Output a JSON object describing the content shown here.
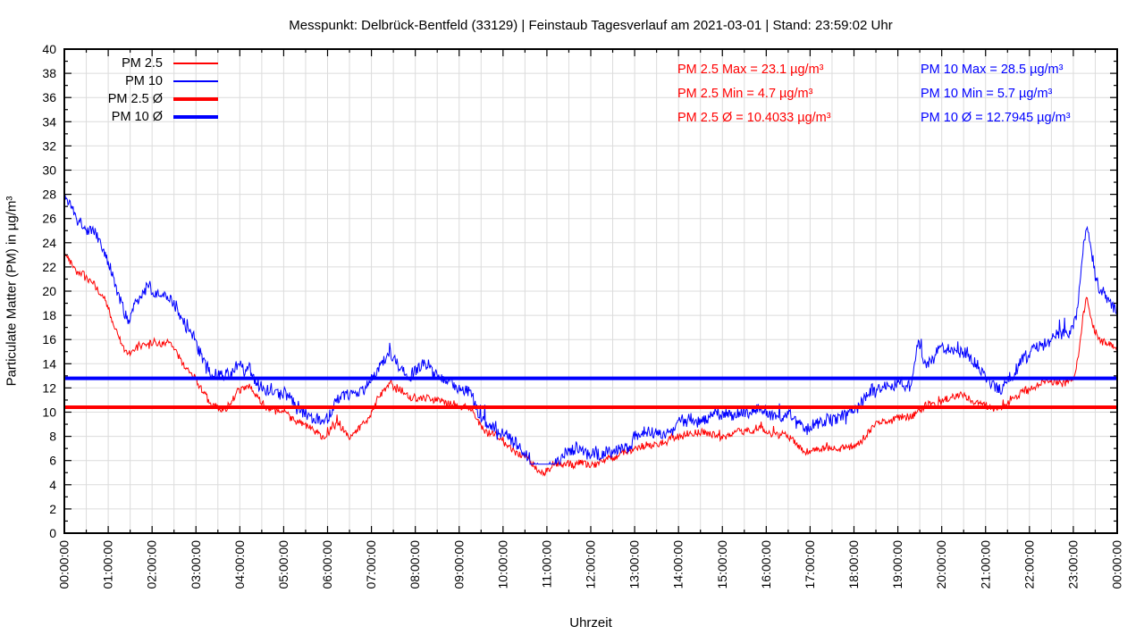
{
  "title": "Messpunkt: Delbrück-Bentfeld (33129) | Feinstaub Tagesverlauf am 2021-03-01 | Stand: 23:59:02 Uhr",
  "axes": {
    "x_label": "Uhrzeit",
    "y_label": "Particulate Matter (PM) in µg/m³"
  },
  "legend": {
    "items": [
      {
        "label": "PM 2.5",
        "color": "#ff0000",
        "style": "thin"
      },
      {
        "label": "PM 10",
        "color": "#0000ff",
        "style": "thin"
      },
      {
        "label": "PM 2.5 Ø",
        "color": "#ff0000",
        "style": "thick"
      },
      {
        "label": "PM 10 Ø",
        "color": "#0000ff",
        "style": "thick"
      }
    ]
  },
  "stats": {
    "pm25": {
      "color": "#ff0000",
      "max": "PM 2.5 Max = 23.1 µg/m³",
      "min": "PM 2.5 Min = 4.7 µg/m³",
      "avg": "PM 2.5 Ø = 10.4033 µg/m³"
    },
    "pm10": {
      "color": "#0000ff",
      "max": "PM 10 Max = 28.5 µg/m³",
      "min": "PM 10 Min = 5.7 µg/m³",
      "avg": "PM 10 Ø = 12.7945 µg/m³"
    }
  },
  "chart_data": {
    "type": "line",
    "title": "Messpunkt: Delbrück-Bentfeld (33129) | Feinstaub Tagesverlauf am 2021-03-01 | Stand: 23:59:02 Uhr",
    "xlabel": "Uhrzeit",
    "ylabel": "Particulate Matter (PM) in µg/m³",
    "x_unit": "hours",
    "xlim": [
      0,
      24
    ],
    "ylim": [
      0,
      40
    ],
    "x_major_tick": 1,
    "x_minor_tick": 0.5,
    "y_major_tick": 2,
    "y_minor_tick": 1,
    "grid": true,
    "grid_color": "#dcdcdc",
    "legend_position": "top-left",
    "x_tick_labels": [
      "00:00:00",
      "01:00:00",
      "02:00:00",
      "03:00:00",
      "04:00:00",
      "05:00:00",
      "06:00:00",
      "07:00:00",
      "08:00:00",
      "09:00:00",
      "10:00:00",
      "11:00:00",
      "12:00:00",
      "13:00:00",
      "14:00:00",
      "15:00:00",
      "16:00:00",
      "17:00:00",
      "18:00:00",
      "19:00:00",
      "20:00:00",
      "21:00:00",
      "22:00:00",
      "23:00:00",
      "00:00:00"
    ],
    "series": [
      {
        "name": "PM 2.5",
        "color": "#ff0000",
        "width": 1,
        "max": 23.1,
        "min": 4.7,
        "avg": 10.4033,
        "noise_amp": 0.28,
        "seed": 42,
        "points_h_v": [
          [
            0,
            23.0
          ],
          [
            0.1,
            22.6
          ],
          [
            0.25,
            21.8
          ],
          [
            0.4,
            21.4
          ],
          [
            0.5,
            21.2
          ],
          [
            0.65,
            20.6
          ],
          [
            0.8,
            19.8
          ],
          [
            1.0,
            18.8
          ],
          [
            1.15,
            17.2
          ],
          [
            1.3,
            15.9
          ],
          [
            1.45,
            14.9
          ],
          [
            1.6,
            15.3
          ],
          [
            1.75,
            15.7
          ],
          [
            1.9,
            15.9
          ],
          [
            2.05,
            16.1
          ],
          [
            2.2,
            15.8
          ],
          [
            2.35,
            15.9
          ],
          [
            2.5,
            15.5
          ],
          [
            2.65,
            14.8
          ],
          [
            2.8,
            14.0
          ],
          [
            3.0,
            12.8
          ],
          [
            3.2,
            11.6
          ],
          [
            3.35,
            10.8
          ],
          [
            3.5,
            10.4
          ],
          [
            3.65,
            10.1
          ],
          [
            3.8,
            10.4
          ],
          [
            3.95,
            11.2
          ],
          [
            4.1,
            11.5
          ],
          [
            4.2,
            11.7
          ],
          [
            4.35,
            11.0
          ],
          [
            4.5,
            10.5
          ],
          [
            4.65,
            10.1
          ],
          [
            4.8,
            9.9
          ],
          [
            5.0,
            9.7
          ],
          [
            5.2,
            9.4
          ],
          [
            5.4,
            8.9
          ],
          [
            5.6,
            8.5
          ],
          [
            5.8,
            8.2
          ],
          [
            5.95,
            8.1
          ],
          [
            6.1,
            8.7
          ],
          [
            6.25,
            9.0
          ],
          [
            6.4,
            8.4
          ],
          [
            6.5,
            7.9
          ],
          [
            6.65,
            8.2
          ],
          [
            6.8,
            8.7
          ],
          [
            7.0,
            9.8
          ],
          [
            7.15,
            10.9
          ],
          [
            7.3,
            11.6
          ],
          [
            7.45,
            12.0
          ],
          [
            7.6,
            11.6
          ],
          [
            7.75,
            11.1
          ],
          [
            7.9,
            10.7
          ],
          [
            8.1,
            10.6
          ],
          [
            8.3,
            10.7
          ],
          [
            8.5,
            10.6
          ],
          [
            8.7,
            10.4
          ],
          [
            8.9,
            10.2
          ],
          [
            9.1,
            10.0
          ],
          [
            9.3,
            9.7
          ],
          [
            9.45,
            8.6
          ],
          [
            9.6,
            7.9
          ],
          [
            9.8,
            7.7
          ],
          [
            10.0,
            7.4
          ],
          [
            10.2,
            7.0
          ],
          [
            10.4,
            6.5
          ],
          [
            10.6,
            5.9
          ],
          [
            10.75,
            5.3
          ],
          [
            10.9,
            4.9
          ],
          [
            11.05,
            5.0
          ],
          [
            11.2,
            5.4
          ],
          [
            11.4,
            5.6
          ],
          [
            11.6,
            5.6
          ],
          [
            11.8,
            5.7
          ],
          [
            12.0,
            5.7
          ],
          [
            12.2,
            5.9
          ],
          [
            12.4,
            6.0
          ],
          [
            12.6,
            6.2
          ],
          [
            12.8,
            6.3
          ],
          [
            13.0,
            6.5
          ],
          [
            13.2,
            6.7
          ],
          [
            13.4,
            7.0
          ],
          [
            13.6,
            7.2
          ],
          [
            13.8,
            7.6
          ],
          [
            14.0,
            7.9
          ],
          [
            14.2,
            8.2
          ],
          [
            14.4,
            8.3
          ],
          [
            14.6,
            8.3
          ],
          [
            14.8,
            8.4
          ],
          [
            15.0,
            8.3
          ],
          [
            15.2,
            8.4
          ],
          [
            15.4,
            8.5
          ],
          [
            15.6,
            8.6
          ],
          [
            15.8,
            8.7
          ],
          [
            16.0,
            8.5
          ],
          [
            16.2,
            8.4
          ],
          [
            16.4,
            8.3
          ],
          [
            16.6,
            8.0
          ],
          [
            16.8,
            7.4
          ],
          [
            17.0,
            7.0
          ],
          [
            17.2,
            7.3
          ],
          [
            17.4,
            7.2
          ],
          [
            17.6,
            7.2
          ],
          [
            17.8,
            7.3
          ],
          [
            18.0,
            7.4
          ],
          [
            18.2,
            8.0
          ],
          [
            18.4,
            8.7
          ],
          [
            18.6,
            9.1
          ],
          [
            18.8,
            9.5
          ],
          [
            19.0,
            9.7
          ],
          [
            19.2,
            9.9
          ],
          [
            19.4,
            10.3
          ],
          [
            19.6,
            10.8
          ],
          [
            19.8,
            11.1
          ],
          [
            20.0,
            11.2
          ],
          [
            20.2,
            11.4
          ],
          [
            20.4,
            11.4
          ],
          [
            20.6,
            11.2
          ],
          [
            20.8,
            11.0
          ],
          [
            21.0,
            10.7
          ],
          [
            21.2,
            10.4
          ],
          [
            21.4,
            10.7
          ],
          [
            21.6,
            11.1
          ],
          [
            21.8,
            11.8
          ],
          [
            22.0,
            12.2
          ],
          [
            22.2,
            12.4
          ],
          [
            22.4,
            12.5
          ],
          [
            22.6,
            12.6
          ],
          [
            22.8,
            12.7
          ],
          [
            23.0,
            13.0
          ],
          [
            23.1,
            14.5
          ],
          [
            23.2,
            17.5
          ],
          [
            23.3,
            19.6
          ],
          [
            23.4,
            18.0
          ],
          [
            23.5,
            16.9
          ],
          [
            23.65,
            16.2
          ],
          [
            23.8,
            15.9
          ],
          [
            24,
            15.5
          ]
        ]
      },
      {
        "name": "PM 10",
        "color": "#0000ff",
        "width": 1,
        "max": 28.5,
        "min": 5.7,
        "avg": 12.7945,
        "noise_amp": 0.5,
        "seed": 1337,
        "points_h_v": [
          [
            0,
            28.2
          ],
          [
            0.1,
            27.6
          ],
          [
            0.25,
            26.4
          ],
          [
            0.4,
            25.8
          ],
          [
            0.55,
            25.4
          ],
          [
            0.7,
            25.0
          ],
          [
            0.85,
            24.2
          ],
          [
            1.0,
            22.6
          ],
          [
            1.15,
            20.8
          ],
          [
            1.3,
            19.2
          ],
          [
            1.45,
            17.5
          ],
          [
            1.6,
            18.7
          ],
          [
            1.75,
            19.2
          ],
          [
            1.9,
            20.2
          ],
          [
            2.0,
            19.3
          ],
          [
            2.15,
            19.6
          ],
          [
            2.3,
            19.4
          ],
          [
            2.45,
            19.3
          ],
          [
            2.6,
            18.7
          ],
          [
            2.75,
            17.6
          ],
          [
            2.9,
            16.3
          ],
          [
            3.05,
            15.0
          ],
          [
            3.2,
            13.8
          ],
          [
            3.35,
            12.8
          ],
          [
            3.5,
            12.4
          ],
          [
            3.65,
            12.3
          ],
          [
            3.8,
            12.7
          ],
          [
            3.95,
            13.9
          ],
          [
            4.1,
            13.0
          ],
          [
            4.2,
            13.8
          ],
          [
            4.35,
            13.0
          ],
          [
            4.5,
            12.8
          ],
          [
            4.65,
            12.6
          ],
          [
            4.8,
            12.4
          ],
          [
            5.0,
            12.4
          ],
          [
            5.15,
            11.5
          ],
          [
            5.3,
            10.6
          ],
          [
            5.5,
            9.9
          ],
          [
            5.7,
            9.2
          ],
          [
            5.9,
            9.0
          ],
          [
            6.05,
            9.9
          ],
          [
            6.15,
            10.9
          ],
          [
            6.3,
            10.7
          ],
          [
            6.45,
            11.2
          ],
          [
            6.6,
            11.4
          ],
          [
            6.75,
            11.6
          ],
          [
            6.9,
            12.2
          ],
          [
            7.05,
            12.9
          ],
          [
            7.2,
            13.5
          ],
          [
            7.35,
            14.5
          ],
          [
            7.5,
            14.3
          ],
          [
            7.65,
            13.7
          ],
          [
            7.8,
            13.3
          ],
          [
            7.95,
            13.2
          ],
          [
            8.1,
            13.5
          ],
          [
            8.25,
            13.7
          ],
          [
            8.4,
            13.2
          ],
          [
            8.55,
            12.9
          ],
          [
            8.7,
            12.5
          ],
          [
            8.85,
            12.3
          ],
          [
            9.0,
            12.2
          ],
          [
            9.15,
            11.9
          ],
          [
            9.3,
            11.5
          ],
          [
            9.45,
            10.0
          ],
          [
            9.6,
            9.6
          ],
          [
            9.8,
            9.1
          ],
          [
            10.0,
            8.7
          ],
          [
            10.2,
            8.1
          ],
          [
            10.4,
            7.4
          ],
          [
            10.6,
            6.7
          ],
          [
            10.8,
            6.2
          ],
          [
            10.95,
            5.9
          ],
          [
            11.1,
            6.4
          ],
          [
            11.3,
            6.9
          ],
          [
            11.5,
            7.1
          ],
          [
            11.7,
            7.2
          ],
          [
            11.9,
            7.2
          ],
          [
            12.1,
            7.3
          ],
          [
            12.3,
            7.5
          ],
          [
            12.5,
            7.6
          ],
          [
            12.7,
            7.8
          ],
          [
            12.9,
            8.0
          ],
          [
            13.0,
            8.6
          ],
          [
            13.1,
            8.2
          ],
          [
            13.3,
            8.4
          ],
          [
            13.5,
            8.7
          ],
          [
            13.7,
            8.9
          ],
          [
            13.9,
            9.4
          ],
          [
            14.05,
            10.3
          ],
          [
            14.2,
            10.0
          ],
          [
            14.4,
            10.1
          ],
          [
            14.6,
            10.2
          ],
          [
            14.8,
            10.3
          ],
          [
            15.0,
            10.2
          ],
          [
            15.2,
            10.3
          ],
          [
            15.5,
            10.6
          ],
          [
            15.7,
            11.0
          ],
          [
            15.9,
            11.3
          ],
          [
            16.05,
            10.8
          ],
          [
            16.2,
            10.5
          ],
          [
            16.4,
            10.3
          ],
          [
            16.6,
            10.0
          ],
          [
            16.8,
            9.7
          ],
          [
            17.0,
            9.4
          ],
          [
            17.15,
            9.8
          ],
          [
            17.3,
            10.1
          ],
          [
            17.5,
            10.2
          ],
          [
            17.7,
            10.5
          ],
          [
            17.9,
            10.8
          ],
          [
            18.1,
            11.3
          ],
          [
            18.3,
            12.2
          ],
          [
            18.5,
            12.6
          ],
          [
            18.7,
            12.9
          ],
          [
            18.9,
            13.1
          ],
          [
            19.1,
            13.1
          ],
          [
            19.3,
            13.0
          ],
          [
            19.4,
            15.5
          ],
          [
            19.45,
            16.6
          ],
          [
            19.6,
            14.9
          ],
          [
            19.8,
            14.9
          ],
          [
            20.0,
            15.2
          ],
          [
            20.2,
            15.6
          ],
          [
            20.4,
            15.4
          ],
          [
            20.6,
            15.1
          ],
          [
            20.8,
            14.4
          ],
          [
            21.0,
            13.7
          ],
          [
            21.2,
            13.0
          ],
          [
            21.35,
            12.8
          ],
          [
            21.5,
            13.3
          ],
          [
            21.7,
            14.2
          ],
          [
            21.9,
            15.2
          ],
          [
            22.1,
            15.9
          ],
          [
            22.3,
            16.4
          ],
          [
            22.5,
            16.9
          ],
          [
            22.7,
            17.1
          ],
          [
            22.9,
            17.5
          ],
          [
            23.0,
            17.8
          ],
          [
            23.1,
            19.5
          ],
          [
            23.2,
            23.5
          ],
          [
            23.3,
            26.0
          ],
          [
            23.4,
            24.2
          ],
          [
            23.5,
            21.8
          ],
          [
            23.65,
            20.6
          ],
          [
            23.8,
            19.9
          ],
          [
            24,
            19.2
          ]
        ]
      }
    ],
    "avg_lines": [
      {
        "name": "PM 2.5 Ø",
        "value": 10.4033,
        "color": "#ff0000",
        "width": 4
      },
      {
        "name": "PM 10 Ø",
        "value": 12.7945,
        "color": "#0000ff",
        "width": 4
      }
    ]
  }
}
